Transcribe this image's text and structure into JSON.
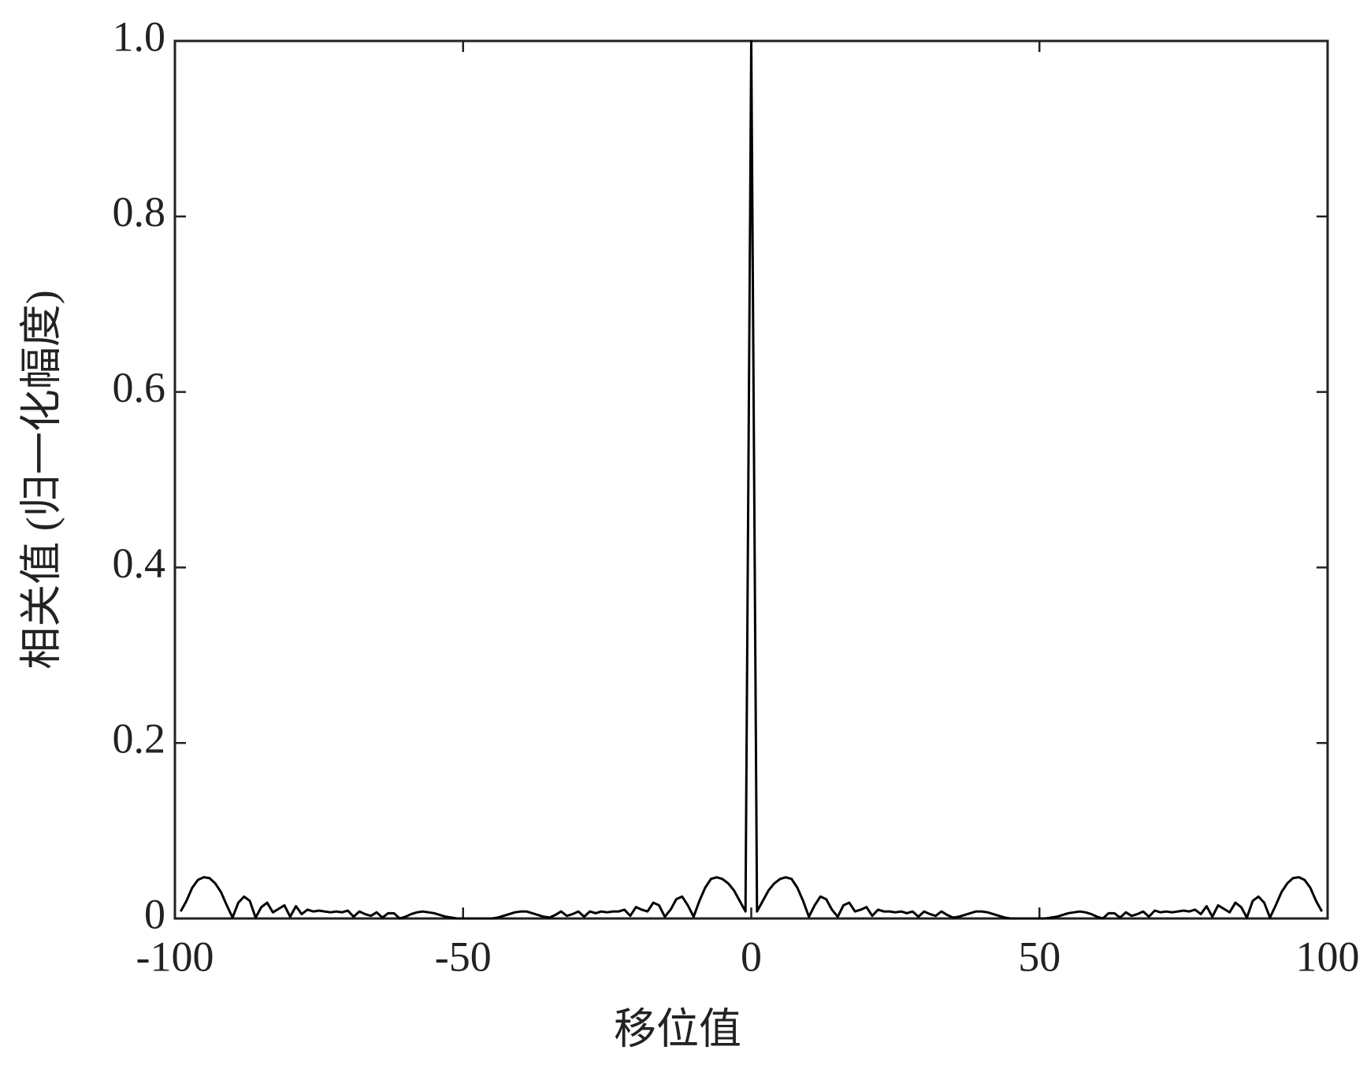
{
  "chart_data": {
    "type": "line",
    "xlabel": "移位值",
    "ylabel": "相关值 (归一化幅度)",
    "x": [
      -99,
      -98,
      -97,
      -96,
      -95,
      -94,
      -93,
      -92,
      -91,
      -90,
      -89,
      -88,
      -87,
      -86,
      -85,
      -84,
      -83,
      -82,
      -81,
      -80,
      -79,
      -78,
      -77,
      -76,
      -75,
      -74,
      -73,
      -72,
      -71,
      -70,
      -69,
      -68,
      -67,
      -66,
      -65,
      -64,
      -63,
      -62,
      -61,
      -60,
      -59,
      -58,
      -57,
      -56,
      -55,
      -54,
      -53,
      -52,
      -51,
      -50,
      -49,
      -48,
      -47,
      -46,
      -45,
      -44,
      -43,
      -42,
      -41,
      -40,
      -39,
      -38,
      -37,
      -36,
      -35,
      -34,
      -33,
      -32,
      -31,
      -30,
      -29,
      -28,
      -27,
      -26,
      -25,
      -24,
      -23,
      -22,
      -21,
      -20,
      -19,
      -18,
      -17,
      -16,
      -15,
      -14,
      -13,
      -12,
      -11,
      -10,
      -9,
      -8,
      -7,
      -6,
      -5,
      -4,
      -3,
      -2,
      -1,
      0,
      1,
      2,
      3,
      4,
      5,
      6,
      7,
      8,
      9,
      10,
      11,
      12,
      13,
      14,
      15,
      16,
      17,
      18,
      19,
      20,
      21,
      22,
      23,
      24,
      25,
      26,
      27,
      28,
      29,
      30,
      31,
      32,
      33,
      34,
      35,
      36,
      37,
      38,
      39,
      40,
      41,
      42,
      43,
      44,
      45,
      46,
      47,
      48,
      49,
      50,
      51,
      52,
      53,
      54,
      55,
      56,
      57,
      58,
      59,
      60,
      61,
      62,
      63,
      64,
      65,
      66,
      67,
      68,
      69,
      70,
      71,
      72,
      73,
      74,
      75,
      76,
      77,
      78,
      79,
      80,
      81,
      82,
      83,
      84,
      85,
      86,
      87,
      88,
      89,
      90,
      91,
      92,
      93,
      94,
      95,
      96,
      97,
      98,
      99
    ],
    "series": [
      {
        "color": "#000000",
        "values": [
          0.008,
          0.02,
          0.035,
          0.044,
          0.047,
          0.046,
          0.04,
          0.03,
          0.015,
          0.001,
          0.018,
          0.025,
          0.02,
          0.001,
          0.013,
          0.018,
          0.007,
          0.011,
          0.015,
          0.002,
          0.014,
          0.005,
          0.01,
          0.008,
          0.009,
          0.008,
          0.007,
          0.008,
          0.007,
          0.009,
          0.002,
          0.008,
          0.005,
          0.003,
          0.007,
          0.001,
          0.006,
          0.006,
          0.0,
          0.002,
          0.005,
          0.007,
          0.008,
          0.007,
          0.006,
          0.004,
          0.002,
          0.001,
          0.0,
          0.0,
          0.0,
          0.0,
          0.0,
          0.0,
          0.0,
          0.001,
          0.003,
          0.005,
          0.007,
          0.008,
          0.008,
          0.006,
          0.004,
          0.002,
          0.001,
          0.004,
          0.008,
          0.003,
          0.005,
          0.008,
          0.002,
          0.008,
          0.006,
          0.008,
          0.007,
          0.008,
          0.008,
          0.01,
          0.003,
          0.013,
          0.01,
          0.008,
          0.018,
          0.015,
          0.002,
          0.01,
          0.022,
          0.025,
          0.015,
          0.002,
          0.02,
          0.035,
          0.045,
          0.047,
          0.045,
          0.04,
          0.032,
          0.02,
          0.008,
          1.0,
          0.008,
          0.02,
          0.032,
          0.04,
          0.045,
          0.047,
          0.045,
          0.035,
          0.02,
          0.002,
          0.015,
          0.025,
          0.022,
          0.01,
          0.002,
          0.015,
          0.018,
          0.008,
          0.01,
          0.013,
          0.003,
          0.01,
          0.008,
          0.008,
          0.007,
          0.008,
          0.006,
          0.008,
          0.002,
          0.008,
          0.005,
          0.003,
          0.008,
          0.004,
          0.001,
          0.002,
          0.004,
          0.006,
          0.008,
          0.008,
          0.007,
          0.005,
          0.003,
          0.001,
          0.0,
          0.0,
          0.0,
          0.0,
          0.0,
          0.0,
          0.0,
          0.001,
          0.002,
          0.004,
          0.006,
          0.007,
          0.008,
          0.007,
          0.005,
          0.002,
          0.0,
          0.006,
          0.006,
          0.001,
          0.007,
          0.003,
          0.005,
          0.008,
          0.002,
          0.009,
          0.007,
          0.008,
          0.007,
          0.008,
          0.009,
          0.008,
          0.01,
          0.005,
          0.014,
          0.002,
          0.015,
          0.011,
          0.007,
          0.018,
          0.013,
          0.001,
          0.02,
          0.025,
          0.018,
          0.001,
          0.015,
          0.03,
          0.04,
          0.046,
          0.047,
          0.044,
          0.035,
          0.02,
          0.008
        ]
      }
    ],
    "xlim": [
      -100,
      100
    ],
    "xticks": [
      -100,
      -50,
      0,
      50,
      100
    ],
    "ylim": [
      0,
      1
    ],
    "yticks": [
      0,
      0.2,
      0.4,
      0.6,
      0.8,
      {
        "value": 1,
        "label": "1.0"
      }
    ]
  }
}
